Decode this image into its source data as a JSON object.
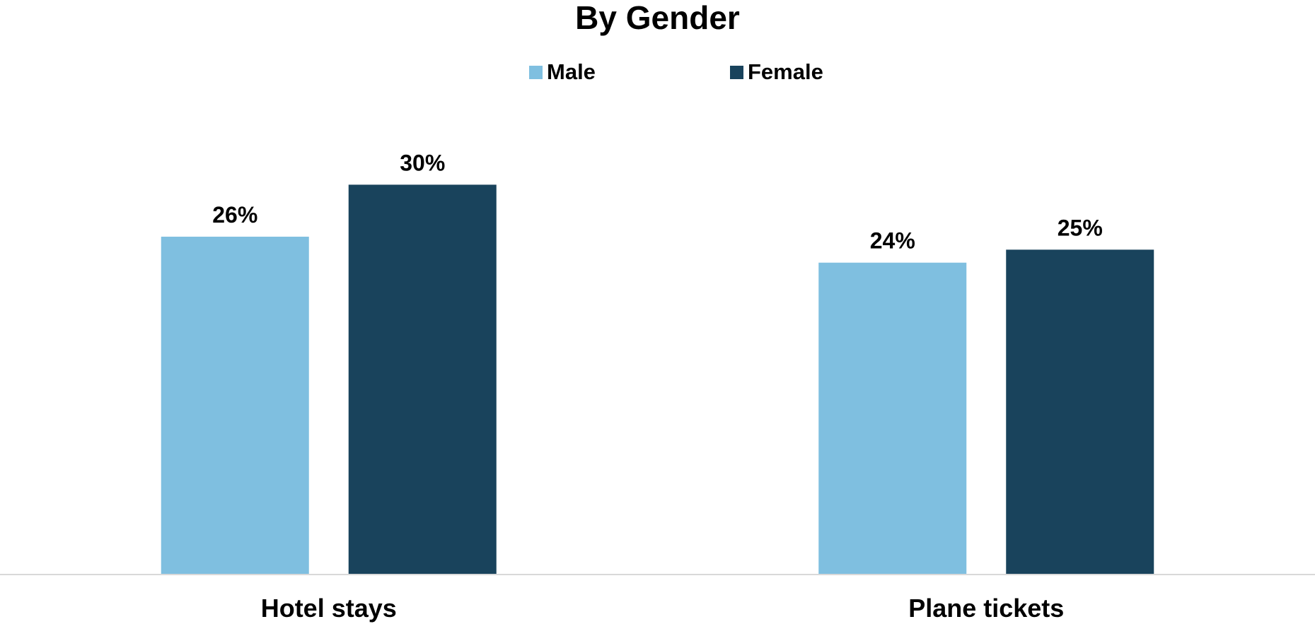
{
  "chart_data": {
    "type": "bar",
    "title": "By Gender",
    "categories": [
      "Hotel stays",
      "Plane tickets"
    ],
    "series": [
      {
        "name": "Male",
        "values": [
          26,
          24
        ],
        "labels": [
          "26%",
          "24%"
        ],
        "color": "#7fbfe0"
      },
      {
        "name": "Female",
        "values": [
          30,
          25
        ],
        "labels": [
          "30%",
          "25%"
        ],
        "color": "#19435c"
      }
    ],
    "ylim": [
      0,
      36.6
    ],
    "grid": false,
    "legend": "top-center",
    "xlabel": "",
    "ylabel": ""
  }
}
